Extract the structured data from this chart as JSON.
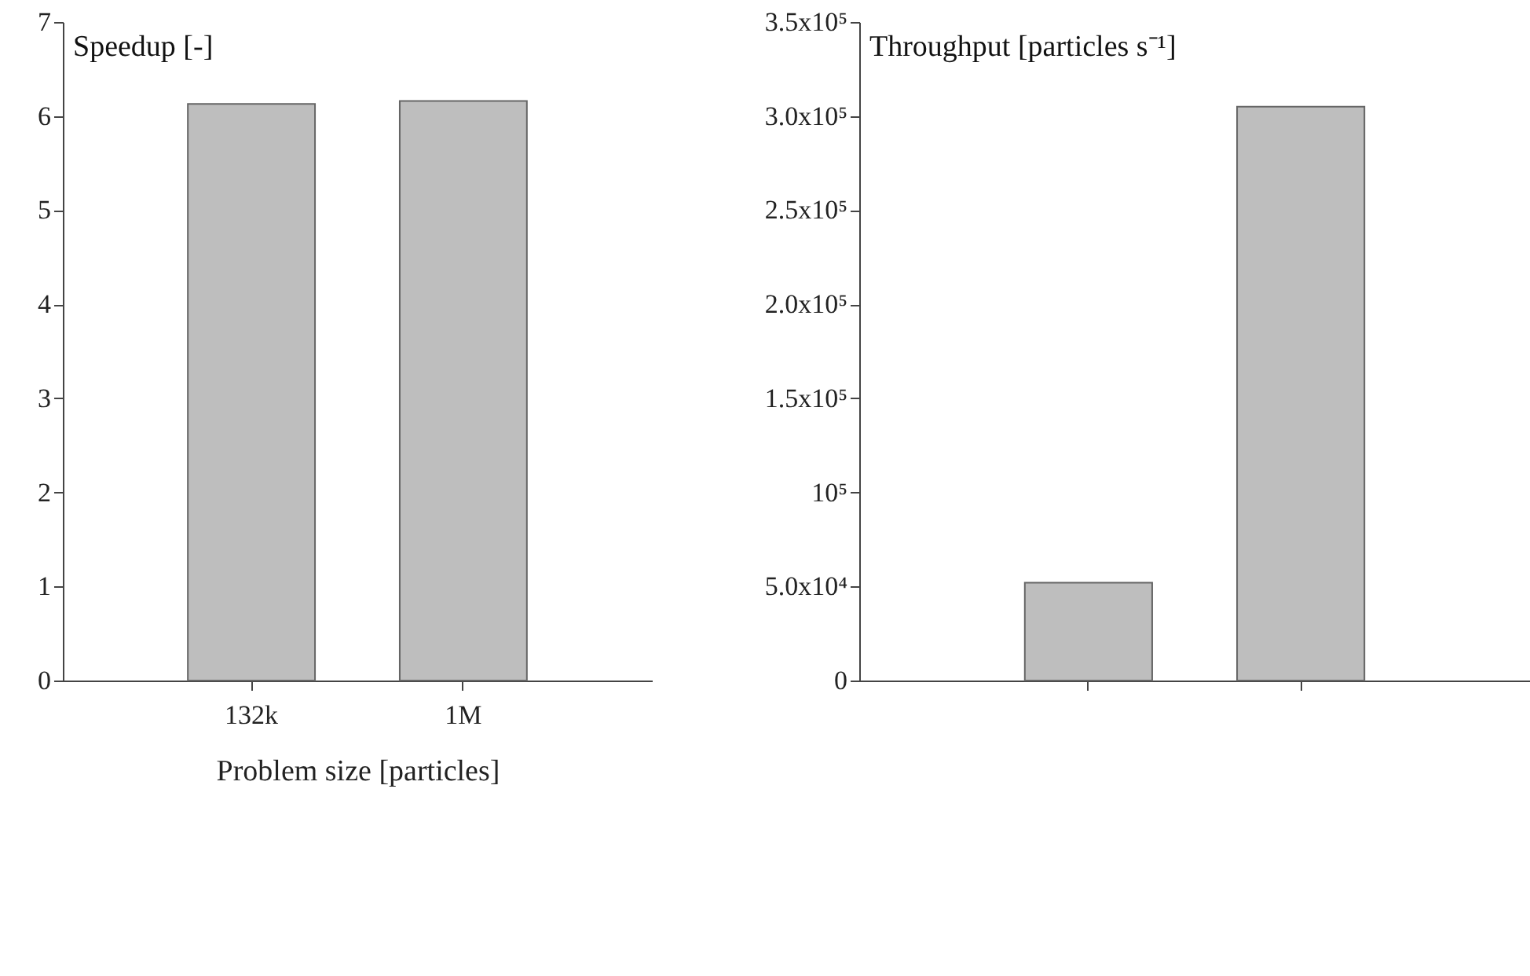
{
  "chart_data": [
    {
      "type": "bar",
      "ylabel": "Speedup [-]",
      "xlabel": "Problem size [particles]",
      "categories": [
        "132k",
        "1M"
      ],
      "values": [
        6.13,
        6.16
      ],
      "color": "#bebebe",
      "ylim": [
        0,
        7
      ],
      "yticks": [
        0,
        1,
        2,
        3,
        4,
        5,
        6,
        7
      ],
      "grid": false
    },
    {
      "type": "bar",
      "ylabel": "Throughput [particles s⁻¹]",
      "categories": [
        null,
        null
      ],
      "values": [
        52000,
        305000
      ],
      "color": "#bebebe",
      "ylim": [
        0,
        350000
      ],
      "yticks": [
        0,
        {
          "value": 50000,
          "label": "5.0x10⁴"
        },
        {
          "value": 100000,
          "label": "10⁵"
        },
        {
          "value": 150000,
          "label": "1.5x10⁵"
        },
        {
          "value": 200000,
          "label": "2.0x10⁵"
        },
        {
          "value": 250000,
          "label": "2.5x10⁵"
        },
        {
          "value": 300000,
          "label": "3.0x10⁵"
        },
        {
          "value": 350000,
          "label": "3.5x10⁵"
        }
      ],
      "grid": false
    }
  ]
}
